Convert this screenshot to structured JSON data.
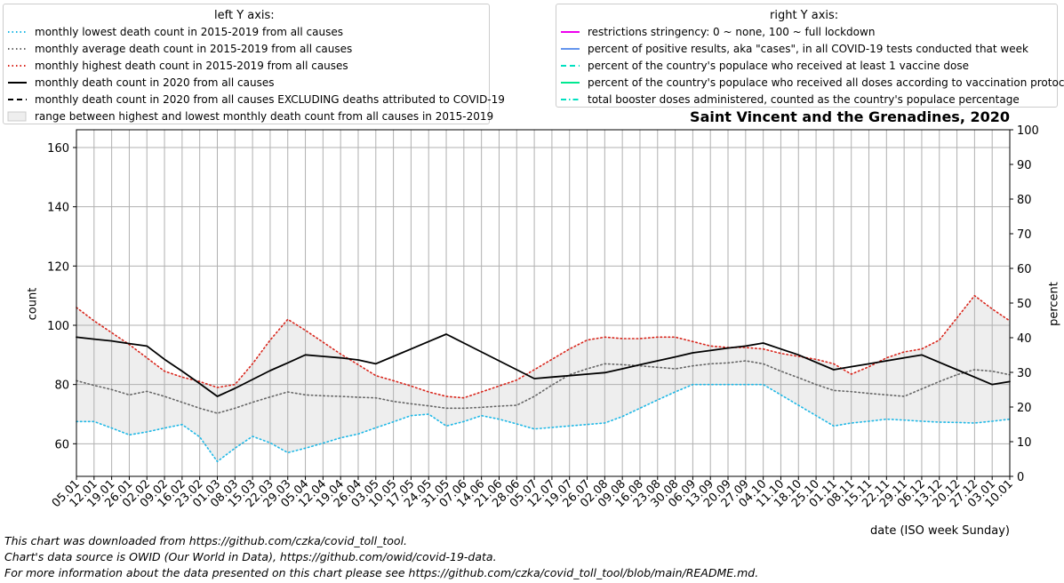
{
  "legend_left": {
    "title": "left Y axis:",
    "items": [
      {
        "label": "monthly lowest death count in 2015-2019 from all causes",
        "color": "#1fb8e6",
        "style": "dotted"
      },
      {
        "label": "monthly average death count in 2015-2019 from all causes",
        "color": "#666666",
        "style": "dotted"
      },
      {
        "label": "monthly highest death count in 2015-2019 from all causes",
        "color": "#d9261c",
        "style": "dotted"
      },
      {
        "label": "monthly death count in 2020 from all causes",
        "color": "#000000",
        "style": "solid"
      },
      {
        "label": "monthly death count in 2020 from all causes EXCLUDING deaths attributed to COVID-19",
        "color": "#000000",
        "style": "dashed"
      },
      {
        "label": "range between highest and lowest monthly death count from all causes in 2015-2019",
        "color": "#eeeeee",
        "style": "fill"
      }
    ]
  },
  "legend_right": {
    "title": "right Y axis:",
    "items": [
      {
        "label": "restrictions stringency: 0 ~ none, 100 ~ full lockdown",
        "color": "#ee00ee",
        "style": "solid"
      },
      {
        "label": "percent of positive results, aka \"cases\", in all COVID-19 tests conducted that week",
        "color": "#6495ed",
        "style": "solid"
      },
      {
        "label": "percent of the country's populace who received at least 1 vaccine dose",
        "color": "#00e0c0",
        "style": "dashed"
      },
      {
        "label": "percent of the country's populace who received all doses according to vaccination protocol",
        "color": "#00e890",
        "style": "solid"
      },
      {
        "label": "total booster doses administered, counted as the country's populace percentage",
        "color": "#00e0c0",
        "style": "dashdot"
      }
    ]
  },
  "footer": {
    "line1": "This chart was downloaded from https://github.com/czka/covid_toll_tool.",
    "line2": "Chart's data source is OWID (Our World in Data), https://github.com/owid/covid-19-data.",
    "line3": "For more information about the data presented on this chart please see https://github.com/czka/covid_toll_tool/blob/main/README.md."
  },
  "chart_data": {
    "type": "line",
    "title": "Saint Vincent and the Grenadines, 2020",
    "xlabel": "date (ISO week Sunday)",
    "ylabel": "count",
    "ylabel_right": "percent",
    "ylim": [
      49,
      166
    ],
    "ylim_right": [
      0,
      100
    ],
    "yticks": [
      60,
      80,
      100,
      120,
      140,
      160
    ],
    "yticks_right": [
      0,
      10,
      20,
      30,
      40,
      50,
      60,
      70,
      80,
      90,
      100
    ],
    "grid": true,
    "x": [
      "05.01",
      "12.01",
      "19.01",
      "26.01",
      "02.02",
      "09.02",
      "16.02",
      "23.02",
      "01.03",
      "08.03",
      "15.03",
      "22.03",
      "29.03",
      "05.04",
      "12.04",
      "19.04",
      "26.04",
      "03.05",
      "10.05",
      "17.05",
      "24.05",
      "31.05",
      "07.06",
      "14.06",
      "21.06",
      "28.06",
      "05.07",
      "12.07",
      "19.07",
      "26.07",
      "02.08",
      "09.08",
      "16.08",
      "23.08",
      "30.08",
      "06.09",
      "13.09",
      "20.09",
      "27.09",
      "04.10",
      "11.10",
      "18.10",
      "25.10",
      "01.11",
      "08.11",
      "15.11",
      "22.11",
      "29.11",
      "06.12",
      "13.12",
      "20.12",
      "27.12",
      "03.01",
      "10.01"
    ],
    "series": [
      {
        "name": "monthly lowest death count in 2015-2019 from all causes",
        "color": "#1fb8e6",
        "style": "dotted",
        "values": [
          67.5,
          67.5,
          65.3,
          63,
          64,
          65.3,
          66.5,
          62.3,
          54,
          58.5,
          62.5,
          60.3,
          57,
          58.5,
          60.2,
          62,
          63.3,
          65.4,
          67.4,
          69.5,
          70,
          66,
          67.5,
          69.5,
          68.3,
          66.7,
          65,
          65.5,
          66,
          66.5,
          67,
          69.2,
          72,
          74.8,
          77.5,
          80,
          80,
          80,
          80,
          80,
          76.5,
          73,
          69.5,
          66,
          67,
          67.6,
          68.3,
          68,
          67.6,
          67.3,
          67.2,
          67,
          67.6,
          68.3
        ]
      },
      {
        "name": "monthly average death count in 2015-2019 from all causes",
        "color": "#666666",
        "style": "dotted",
        "values": [
          81.3,
          79.7,
          78.3,
          76.5,
          77.7,
          76,
          74,
          72,
          70.3,
          72,
          74,
          75.8,
          77.5,
          76.5,
          76.2,
          76,
          75.7,
          75.5,
          74.3,
          73.5,
          72.8,
          72,
          72,
          72.3,
          72.7,
          73,
          76,
          79.8,
          83.3,
          85.3,
          87,
          86.7,
          86.3,
          85.8,
          85.3,
          86.3,
          87,
          87.3,
          88,
          87,
          84.5,
          82.3,
          80,
          78,
          77.6,
          77,
          76.5,
          76,
          78.5,
          81,
          83.3,
          85,
          84.5,
          83.3
        ]
      },
      {
        "name": "monthly highest death count in 2015-2019 from all causes",
        "color": "#d9261c",
        "style": "dotted",
        "values": [
          106,
          101.5,
          97.5,
          93.5,
          89,
          84.5,
          82.5,
          81,
          79,
          80,
          87,
          95,
          102,
          98.3,
          94.3,
          90.3,
          86.7,
          83,
          81.3,
          79.5,
          77.5,
          76,
          75.5,
          77.5,
          79.5,
          81.5,
          85,
          88.5,
          92,
          95,
          96,
          95.5,
          95.5,
          96,
          96,
          94.5,
          93,
          92.5,
          92.5,
          92,
          90.5,
          89.5,
          88.5,
          87,
          83.5,
          86,
          89,
          91,
          92,
          95,
          102.5,
          110,
          105.5,
          101.5
        ]
      },
      {
        "name": "monthly death count in 2020 from all causes",
        "color": "#000000",
        "style": "solid",
        "values": [
          96,
          95.3,
          94.7,
          93.8,
          93,
          88.5,
          84.5,
          80.3,
          76,
          78.7,
          81.7,
          84.7,
          87.3,
          90,
          89.5,
          89,
          88.3,
          87,
          89.5,
          92,
          94.5,
          97,
          94,
          91,
          88,
          85,
          82,
          82.5,
          83,
          83.5,
          84,
          85.3,
          86.7,
          88,
          89.3,
          90.7,
          91.5,
          92.3,
          93,
          94,
          92,
          90,
          87.5,
          85,
          86,
          87,
          88,
          89,
          90,
          87.5,
          85,
          82.5,
          80,
          81
        ]
      }
    ]
  }
}
